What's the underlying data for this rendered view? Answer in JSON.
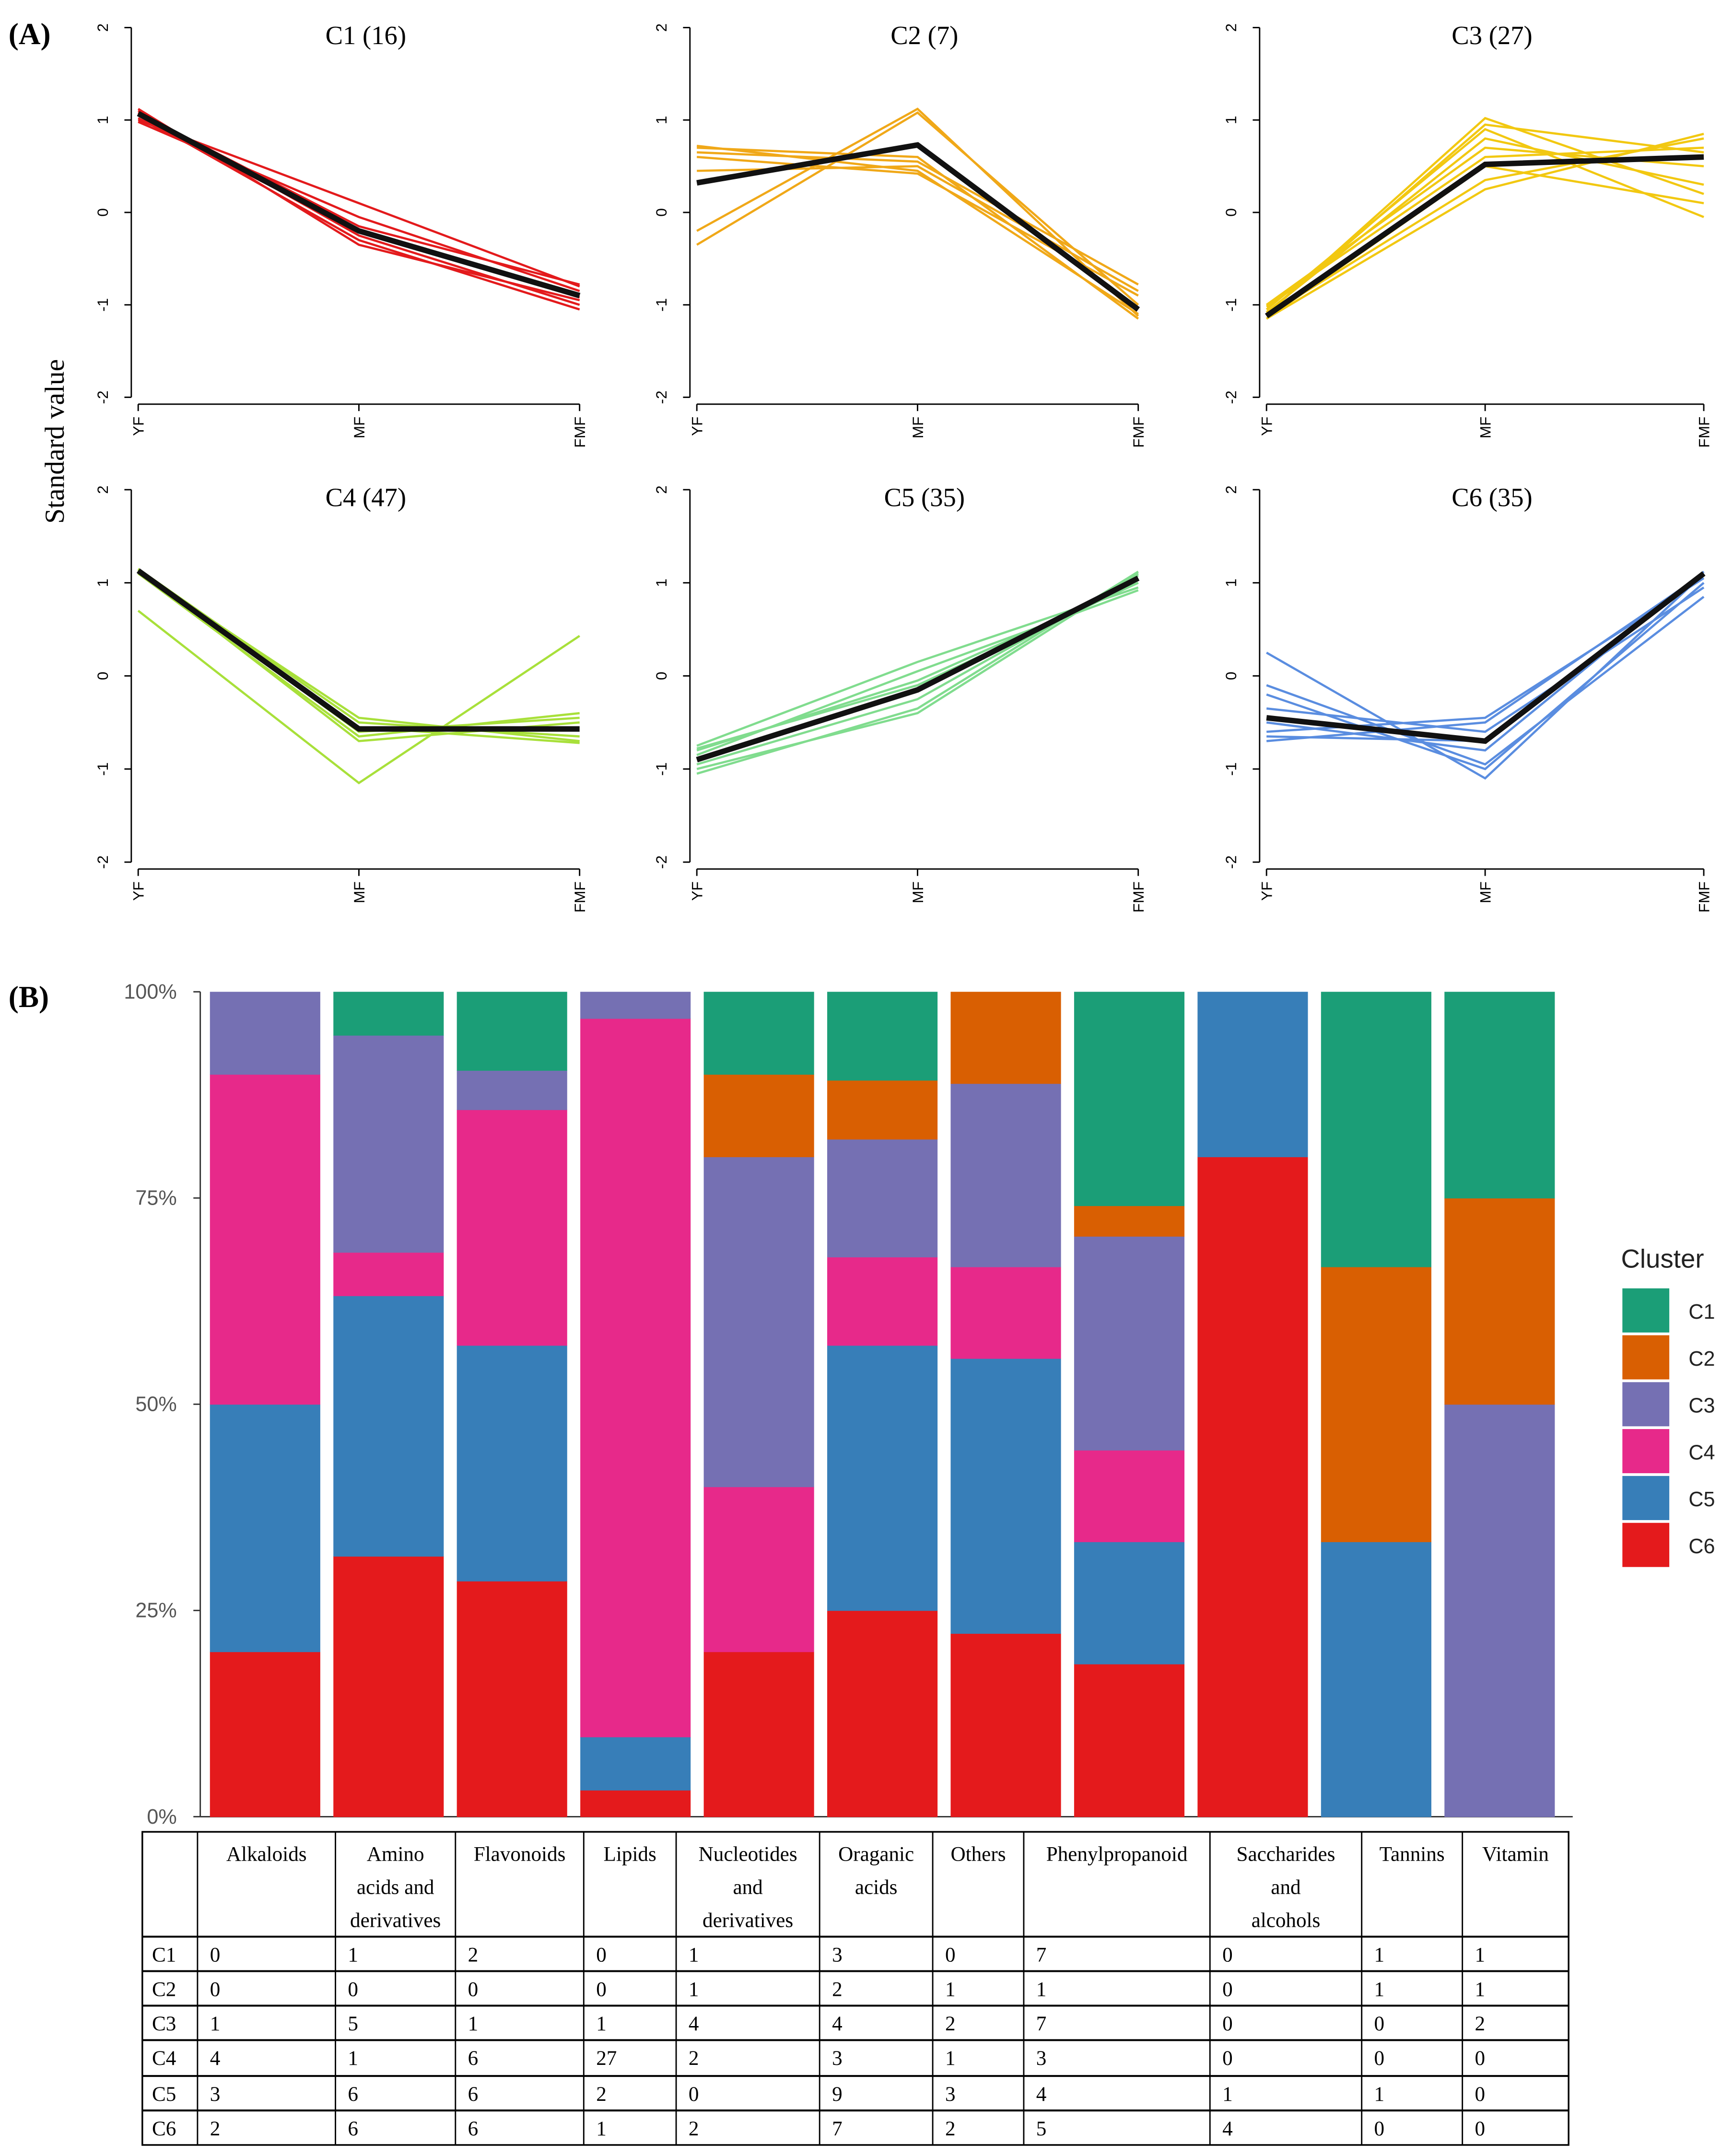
{
  "chart_data": [
    {
      "panel_label": "(A)",
      "type": "line",
      "ylabel": "Standard value",
      "x": [
        "YF",
        "MF",
        "FMF"
      ],
      "ylim": [
        -2,
        2
      ],
      "yticks": [
        "2",
        "1",
        "0",
        "-1",
        "-2"
      ],
      "panels": [
        {
          "title": "C1 (16)",
          "color": "#e31a1c",
          "mean": [
            1.07,
            -0.2,
            -0.9
          ],
          "members": [
            [
              1.12,
              -0.35,
              -0.95
            ],
            [
              1.0,
              0.1,
              -0.8
            ],
            [
              1.1,
              -0.25,
              -1.0
            ],
            [
              0.98,
              -0.05,
              -0.85
            ],
            [
              1.05,
              -0.3,
              -1.05
            ],
            [
              1.08,
              -0.15,
              -0.78
            ],
            [
              1.02,
              -0.2,
              -0.92
            ]
          ]
        },
        {
          "title": "C2 (7)",
          "color": "#f0a818",
          "mean": [
            0.32,
            0.73,
            -1.05
          ],
          "members": [
            [
              0.72,
              0.45,
              -1.1
            ],
            [
              0.65,
              0.55,
              -0.78
            ],
            [
              -0.2,
              1.12,
              -1.12
            ],
            [
              -0.35,
              1.08,
              -1.0
            ],
            [
              0.6,
              0.42,
              -0.9
            ],
            [
              0.7,
              0.6,
              -1.15
            ],
            [
              0.45,
              0.5,
              -0.85
            ]
          ]
        },
        {
          "title": "C3 (27)",
          "color": "#f2c811",
          "mean": [
            -1.12,
            0.52,
            0.6
          ],
          "members": [
            [
              -1.1,
              1.02,
              0.2
            ],
            [
              -1.05,
              0.9,
              -0.05
            ],
            [
              -1.15,
              0.25,
              0.85
            ],
            [
              -1.0,
              0.7,
              0.5
            ],
            [
              -1.12,
              0.35,
              0.8
            ],
            [
              -1.08,
              0.8,
              0.3
            ],
            [
              -1.02,
              0.6,
              0.7
            ],
            [
              -1.15,
              0.5,
              0.1
            ],
            [
              -1.1,
              0.95,
              0.65
            ]
          ]
        },
        {
          "title": "C4 (47)",
          "color": "#a8e03a",
          "mean": [
            1.13,
            -0.57,
            -0.57
          ],
          "members": [
            [
              0.7,
              -1.15,
              0.43
            ],
            [
              1.12,
              -0.45,
              -0.7
            ],
            [
              1.1,
              -0.65,
              -0.4
            ],
            [
              1.15,
              -0.5,
              -0.65
            ],
            [
              1.13,
              -0.7,
              -0.5
            ],
            [
              1.1,
              -0.55,
              -0.72
            ],
            [
              1.14,
              -0.6,
              -0.45
            ]
          ]
        },
        {
          "title": "C5 (35)",
          "color": "#80dc8e",
          "mean": [
            -0.9,
            -0.15,
            1.05
          ],
          "members": [
            [
              -0.75,
              0.15,
              0.95
            ],
            [
              -1.05,
              -0.35,
              1.12
            ],
            [
              -0.8,
              -0.05,
              1.0
            ],
            [
              -1.0,
              -0.4,
              1.1
            ],
            [
              -0.85,
              0.05,
              0.92
            ],
            [
              -0.95,
              -0.25,
              1.08
            ],
            [
              -0.78,
              -0.1,
              1.0
            ]
          ]
        },
        {
          "title": "C6 (35)",
          "color": "#5a8de0",
          "mean": [
            -0.45,
            -0.7,
            1.1
          ],
          "members": [
            [
              0.25,
              -1.1,
              1.1
            ],
            [
              -0.1,
              -0.95,
              0.85
            ],
            [
              -0.7,
              -0.5,
              1.1
            ],
            [
              -0.6,
              -0.45,
              1.05
            ],
            [
              -0.2,
              -1.0,
              1.0
            ],
            [
              -0.5,
              -0.8,
              1.12
            ],
            [
              -0.35,
              -0.6,
              0.95
            ],
            [
              -0.65,
              -0.7,
              1.08
            ]
          ]
        }
      ]
    },
    {
      "panel_label": "(B)",
      "type": "bar",
      "stacked": "percent",
      "yticks": [
        "0%",
        "25%",
        "50%",
        "75%",
        "100%"
      ],
      "legend_title": "Cluster",
      "legend_position": "right",
      "clusters": [
        "C1",
        "C2",
        "C3",
        "C4",
        "C5",
        "C6"
      ],
      "colors": [
        "#1b9e77",
        "#d95f02",
        "#7570b3",
        "#e7298a",
        "#377eb8",
        "#e41a1c"
      ],
      "categories": [
        "Alkaloids",
        "Amino acids and derivatives",
        "Flavonoids",
        "Lipids",
        "Nucleotides and derivatives",
        "Oraganic acids",
        "Others",
        "Phenylpropanoid",
        "Saccharides and alcohols",
        "Tannins",
        "Vitamin"
      ],
      "table_header_lines": [
        [
          "Alkaloids"
        ],
        [
          "Amino",
          "acids and",
          "derivatives"
        ],
        [
          "Flavonoids"
        ],
        [
          "Lipids"
        ],
        [
          "Nucleotides",
          "and",
          "derivatives"
        ],
        [
          "Oraganic",
          "acids"
        ],
        [
          "Others"
        ],
        [
          "Phenylpropanoid"
        ],
        [
          "Saccharides",
          "and",
          "alcohols"
        ],
        [
          "Tannins"
        ],
        [
          "Vitamin"
        ]
      ],
      "counts": {
        "C1": [
          0,
          1,
          2,
          0,
          1,
          3,
          0,
          7,
          0,
          1,
          1
        ],
        "C2": [
          0,
          0,
          0,
          0,
          1,
          2,
          1,
          1,
          0,
          1,
          1
        ],
        "C3": [
          1,
          5,
          1,
          1,
          4,
          4,
          2,
          7,
          0,
          0,
          2
        ],
        "C4": [
          4,
          1,
          6,
          27,
          2,
          3,
          1,
          3,
          0,
          0,
          0
        ],
        "C5": [
          3,
          6,
          6,
          2,
          0,
          9,
          3,
          4,
          1,
          1,
          0
        ],
        "C6": [
          2,
          6,
          6,
          1,
          2,
          7,
          2,
          5,
          4,
          0,
          0
        ]
      }
    }
  ]
}
